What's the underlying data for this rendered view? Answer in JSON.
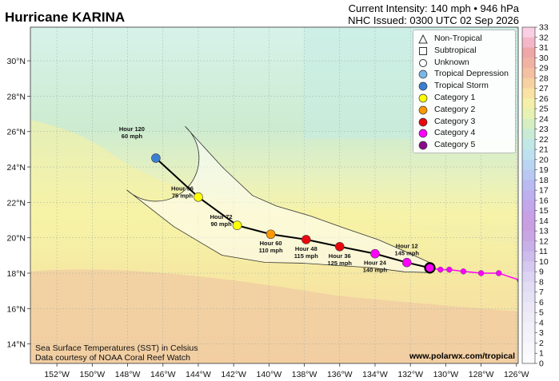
{
  "header": {
    "title": "Hurricane KARINA",
    "intensity": "Current Intensity: 140 mph • 946 hPa",
    "issued": "NHC Issued: 0300 UTC 02 Sep 2026"
  },
  "legend": {
    "items": [
      {
        "label": "Non-Tropical",
        "symbol": "triangle"
      },
      {
        "label": "Subtropical",
        "symbol": "square"
      },
      {
        "label": "Unknown",
        "symbol": "circle-open"
      },
      {
        "label": "Tropical Depression",
        "symbol": "circle",
        "color": "#7ab6e6"
      },
      {
        "label": "Tropical Storm",
        "symbol": "circle",
        "color": "#3a7fd1"
      },
      {
        "label": "Category 1",
        "symbol": "circle",
        "color": "#ffff00"
      },
      {
        "label": "Category 2",
        "symbol": "circle",
        "color": "#ff9900"
      },
      {
        "label": "Category 3",
        "symbol": "circle",
        "color": "#e8080d"
      },
      {
        "label": "Category 4",
        "symbol": "circle",
        "color": "#ff00ff"
      },
      {
        "label": "Category 5",
        "symbol": "circle",
        "color": "#8a0a8a"
      }
    ]
  },
  "colorbar": {
    "ticks": [
      "33",
      "32",
      "31",
      "30",
      "29",
      "28",
      "27",
      "26",
      "25",
      "24",
      "23",
      "22",
      "21",
      "20",
      "19",
      "18",
      "17",
      "16",
      "15",
      "14",
      "13",
      "12",
      "11",
      "10",
      "9",
      "8",
      "7",
      "6",
      "5",
      "4",
      "3",
      "2",
      "1",
      "0"
    ]
  },
  "axes": {
    "lon_labels": [
      "152°W",
      "150°W",
      "148°W",
      "146°W",
      "144°W",
      "142°W",
      "140°W",
      "138°W",
      "136°W",
      "134°W",
      "132°W",
      "130°W",
      "128°W",
      "126°W"
    ],
    "lon_values": [
      -152,
      -150,
      -148,
      -146,
      -144,
      -142,
      -140,
      -138,
      -136,
      -134,
      -132,
      -130,
      -128,
      -126
    ],
    "lat_labels": [
      "30°N",
      "28°N",
      "26°N",
      "24°N",
      "22°N",
      "20°N",
      "18°N",
      "16°N",
      "14°N"
    ],
    "lat_values": [
      30,
      28,
      26,
      24,
      22,
      20,
      18,
      16,
      14
    ],
    "lon_range": [
      -153.5,
      -125.9
    ],
    "lat_range": [
      12.9,
      31.9
    ]
  },
  "track": {
    "past": [
      {
        "lon": -125.8,
        "lat": 17.6,
        "color": "#ff00ff"
      },
      {
        "lon": -127,
        "lat": 18.0,
        "color": "#ff00ff"
      },
      {
        "lon": -128,
        "lat": 18.0,
        "color": "#ff00ff"
      },
      {
        "lon": -129,
        "lat": 18.1,
        "color": "#ff00ff"
      },
      {
        "lon": -129.8,
        "lat": 18.2,
        "color": "#ff00ff"
      },
      {
        "lon": -130.3,
        "lat": 18.2,
        "color": "#ff00ff"
      }
    ],
    "current": {
      "lon": -130.9,
      "lat": 18.3,
      "color": "#ff00ff"
    },
    "forecast": [
      {
        "hour_label": "Hour 12",
        "wind_label": "145 mph",
        "lon": -132.2,
        "lat": 18.6,
        "color": "#ff00ff",
        "label_side": "above"
      },
      {
        "hour_label": "Hour 24",
        "wind_label": "140 mph",
        "lon": -134.0,
        "lat": 19.1,
        "color": "#ff00ff",
        "label_side": "below"
      },
      {
        "hour_label": "Hour 36",
        "wind_label": "125 mph",
        "lon": -136.0,
        "lat": 19.5,
        "color": "#e8080d",
        "label_side": "below"
      },
      {
        "hour_label": "Hour 48",
        "wind_label": "115 mph",
        "lon": -137.9,
        "lat": 19.9,
        "color": "#e8080d",
        "label_side": "below"
      },
      {
        "hour_label": "Hour 60",
        "wind_label": "110 mph",
        "lon": -139.9,
        "lat": 20.2,
        "color": "#ff9900",
        "label_side": "below"
      },
      {
        "hour_label": "Hour 72",
        "wind_label": "90 mph",
        "lon": -141.8,
        "lat": 20.7,
        "color": "#ffff00",
        "label_side": "left"
      },
      {
        "hour_label": "Hour 96",
        "wind_label": "75 mph",
        "lon": -144.0,
        "lat": 22.3,
        "color": "#ffff00",
        "label_side": "left"
      },
      {
        "hour_label": "Hour 120",
        "wind_label": "60 mph",
        "lon": -146.4,
        "lat": 24.5,
        "color": "#3a7fd1",
        "label_side": "above-left"
      }
    ]
  },
  "credits": {
    "line1": "Sea Surface Temperatures (SST) in Celsius",
    "line2": "Data courtesy of NOAA Coral Reef Watch",
    "url": "www.polarwx.com/tropical"
  }
}
